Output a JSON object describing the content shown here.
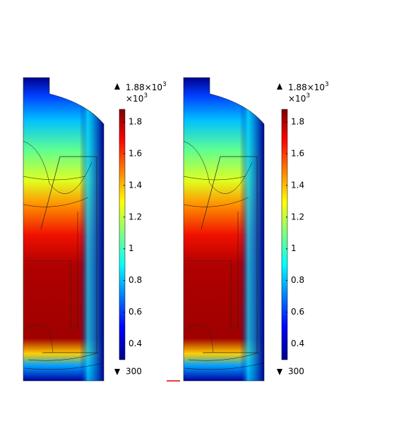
{
  "panels": [
    {
      "max_label": "1.88×10",
      "max_exp": "3",
      "multiplier": "×10",
      "multiplier_exp": "3",
      "min_label": "300",
      "range": [
        0.3,
        1.88
      ],
      "ticks": [
        1.8,
        1.6,
        1.4,
        1.2,
        1,
        0.8,
        0.6,
        0.4
      ]
    },
    {
      "max_label": "1.88×10",
      "max_exp": "3",
      "multiplier": "×10",
      "multiplier_exp": "3",
      "min_label": "300",
      "range": [
        0.3,
        1.88
      ],
      "ticks": [
        1.8,
        1.6,
        1.4,
        1.2,
        1,
        0.8,
        0.6,
        0.4
      ]
    }
  ]
}
